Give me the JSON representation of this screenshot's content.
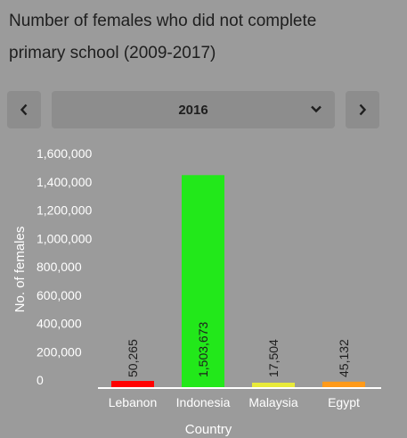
{
  "header": {
    "title_line1": "Number of females who did not complete",
    "title_line2": "primary school (2009-2017)"
  },
  "controls": {
    "selected_year": "2016",
    "prev_icon": "chevron-left-icon",
    "next_icon": "chevron-right-icon",
    "dropdown_icon": "chevron-down-icon"
  },
  "chart_data": {
    "type": "bar",
    "title": "Number of females who did not complete primary school (2009-2017)",
    "xlabel": "Country",
    "ylabel": "No. of females",
    "categories": [
      "Lebanon",
      "Indonesia",
      "Malaysia",
      "Egypt"
    ],
    "values": [
      50265,
      1503673,
      17504,
      45132
    ],
    "value_labels": [
      "50,265",
      "1,503,673",
      "17,504",
      "45,132"
    ],
    "colors": [
      "#ff0000",
      "#22e81a",
      "#e8ea3a",
      "#ff9a1a"
    ],
    "ylim": [
      0,
      1600000
    ],
    "yticks": [
      0,
      200000,
      400000,
      600000,
      800000,
      1000000,
      1200000,
      1400000,
      1600000
    ],
    "ytick_labels": [
      "0",
      "200,000",
      "400,000",
      "600,000",
      "800,000",
      "1,000,000",
      "1,200,000",
      "1,400,000",
      "1,600,000"
    ],
    "grid": false,
    "legend": "none"
  }
}
